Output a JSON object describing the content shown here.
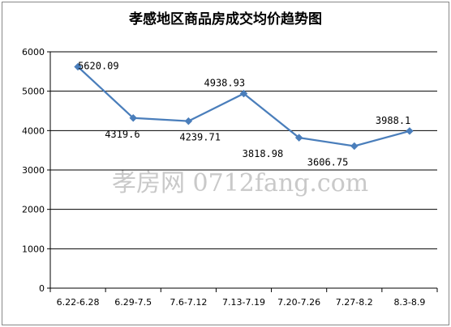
{
  "chart_data": {
    "type": "line",
    "title": "孝感地区商品房成交均价趋势图",
    "categories": [
      "6.22-6.28",
      "6.29-7.5",
      "7.6-7.12",
      "7.13-7.19",
      "7.20-7.26",
      "7.27-8.2",
      "8.3-8.9"
    ],
    "series": [
      {
        "values": [
          5620.09,
          4319.6,
          4239.71,
          4938.93,
          3818.98,
          3606.75,
          3988.1
        ]
      }
    ],
    "data_labels": [
      "5620.09",
      "4319.6",
      "4239.71",
      "4938.93",
      "3818.98",
      "3606.75",
      "3988.1"
    ],
    "category_labels": [
      "6.22-6.28",
      "6.29-7.5",
      "7.6-7.12",
      "7.13-7.19",
      "7.20-7.26",
      "7.27-8.2",
      "8.3-8.9"
    ],
    "yticks": [
      "0",
      "1000",
      "2000",
      "3000",
      "4000",
      "5000",
      "6000"
    ],
    "ylim": [
      0,
      6000
    ],
    "grid": "horizontal",
    "line_color": "#4a7ebb",
    "watermark": "孝房网 0712fang.com"
  }
}
